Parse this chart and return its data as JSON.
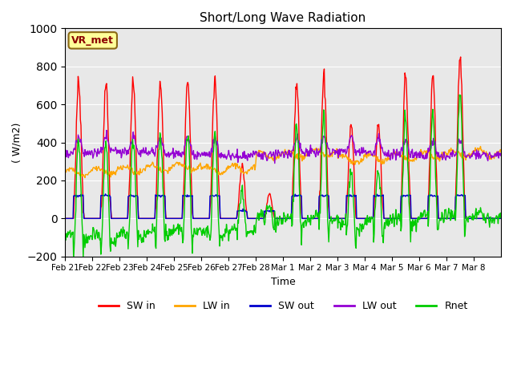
{
  "title": "Short/Long Wave Radiation",
  "ylabel": "( W/m2)",
  "xlabel": "Time",
  "ylim": [
    -200,
    1000
  ],
  "annotation": "VR_met",
  "series_colors": {
    "SW_in": "#ff0000",
    "LW_in": "#ffa500",
    "SW_out": "#0000cd",
    "LW_out": "#9400d3",
    "Rnet": "#00cc00"
  },
  "legend_labels": [
    "SW in",
    "LW in",
    "SW out",
    "LW out",
    "Rnet"
  ],
  "xtick_labels": [
    "Feb 21",
    "Feb 22",
    "Feb 23",
    "Feb 24",
    "Feb 25",
    "Feb 26",
    "Feb 27",
    "Feb 28",
    "Mar 1",
    "Mar 2",
    "Mar 3",
    "Mar 4",
    "Mar 5",
    "Mar 6",
    "Mar 7",
    "Mar 8"
  ],
  "bg_color": "#e8e8e8",
  "fig_bg": "#ffffff",
  "grid_color": "#ffffff",
  "linewidth": 1.0
}
